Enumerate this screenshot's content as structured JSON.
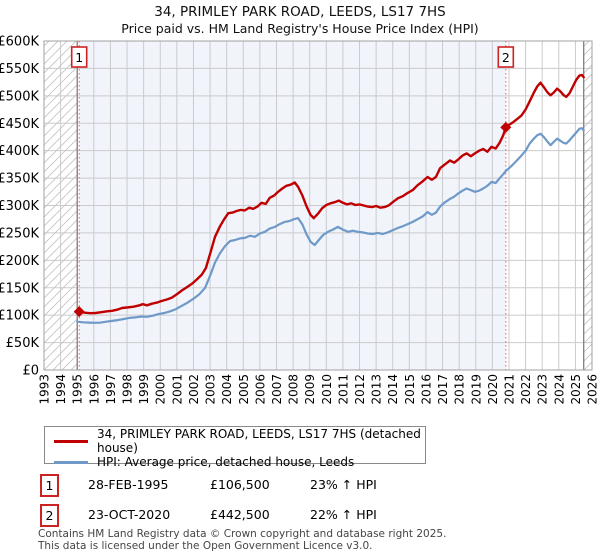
{
  "header": {
    "title": "34, PRIMLEY PARK ROAD, LEEDS, LS17 7HS",
    "subtitle": "Price paid vs. HM Land Registry's House Price Index (HPI)"
  },
  "chart_data": {
    "type": "line",
    "title": "34, PRIMLEY PARK ROAD, LEEDS, LS17 7HS",
    "subtitle": "Price paid vs. HM Land Registry's House Price Index (HPI)",
    "x_axis": {
      "range": [
        1993,
        2026
      ],
      "ticks": [
        1993,
        1994,
        1995,
        1996,
        1997,
        1998,
        1999,
        2000,
        2001,
        2002,
        2003,
        2004,
        2005,
        2006,
        2007,
        2008,
        2009,
        2010,
        2011,
        2012,
        2013,
        2014,
        2015,
        2016,
        2017,
        2018,
        2019,
        2020,
        2021,
        2022,
        2023,
        2024,
        2025,
        2026
      ]
    },
    "y_axis": {
      "range_gbp": [
        0,
        600000
      ],
      "tick_step_gbp": 50000,
      "tick_labels": [
        "£0",
        "£50K",
        "£100K",
        "£150K",
        "£200K",
        "£250K",
        "£300K",
        "£350K",
        "£400K",
        "£450K",
        "£500K",
        "£550K",
        "£600K"
      ]
    },
    "grid": true,
    "colors": {
      "property": "#c00000",
      "hpi": "#6e99c9",
      "sale_line": "#ff5a5a",
      "shade": "#f1f4fb",
      "grid": "#cbcbcb",
      "hatch": "#c4c4c4",
      "frame": "#a0a0a0",
      "boundary": "#808080"
    },
    "data_start_year": 1995.0,
    "data_end_year": 2025.5,
    "shaded_region_years": [
      1995.12,
      2020.81
    ],
    "hatch_regions_years": [
      [
        1993,
        1995.0
      ],
      [
        2025.5,
        2026
      ]
    ],
    "sales": [
      {
        "label": "1",
        "year": 1995.12,
        "price_gbp_k": 106.5
      },
      {
        "label": "2",
        "year": 2020.81,
        "price_gbp_k": 442.5
      }
    ],
    "series": [
      {
        "name": "34, PRIMLEY PARK ROAD, LEEDS, LS17 7HS (detached house)",
        "color": "#c00000",
        "points": [
          [
            1995.12,
            106.5
          ],
          [
            1995.45,
            104.5
          ],
          [
            1995.8,
            103.5
          ],
          [
            1996.1,
            104
          ],
          [
            1996.45,
            105.5
          ],
          [
            1996.8,
            107
          ],
          [
            1997.1,
            108
          ],
          [
            1997.4,
            110
          ],
          [
            1997.7,
            113
          ],
          [
            1998.0,
            114
          ],
          [
            1998.4,
            115.5
          ],
          [
            1998.75,
            118
          ],
          [
            1998.95,
            120
          ],
          [
            1999.2,
            118
          ],
          [
            1999.5,
            121
          ],
          [
            1999.8,
            123
          ],
          [
            2000.1,
            126
          ],
          [
            2000.4,
            128.5
          ],
          [
            2000.7,
            132
          ],
          [
            2001.0,
            138
          ],
          [
            2001.3,
            145
          ],
          [
            2001.6,
            151
          ],
          [
            2001.9,
            157
          ],
          [
            2002.2,
            165
          ],
          [
            2002.5,
            174
          ],
          [
            2002.75,
            186
          ],
          [
            2003.0,
            212
          ],
          [
            2003.3,
            243
          ],
          [
            2003.6,
            262
          ],
          [
            2003.85,
            275
          ],
          [
            2004.1,
            286
          ],
          [
            2004.35,
            287
          ],
          [
            2004.6,
            290
          ],
          [
            2004.85,
            292
          ],
          [
            2005.1,
            291
          ],
          [
            2005.35,
            296
          ],
          [
            2005.6,
            294
          ],
          [
            2005.85,
            298
          ],
          [
            2006.1,
            305
          ],
          [
            2006.35,
            303
          ],
          [
            2006.6,
            314
          ],
          [
            2006.85,
            318
          ],
          [
            2007.1,
            325
          ],
          [
            2007.35,
            331
          ],
          [
            2007.6,
            336
          ],
          [
            2007.85,
            338
          ],
          [
            2008.1,
            342
          ],
          [
            2008.3,
            334
          ],
          [
            2008.55,
            319
          ],
          [
            2008.8,
            299
          ],
          [
            2009.05,
            283
          ],
          [
            2009.25,
            277
          ],
          [
            2009.5,
            285
          ],
          [
            2009.75,
            295
          ],
          [
            2010.0,
            301
          ],
          [
            2010.25,
            304
          ],
          [
            2010.5,
            306
          ],
          [
            2010.75,
            309
          ],
          [
            2011.0,
            305
          ],
          [
            2011.25,
            302
          ],
          [
            2011.5,
            304
          ],
          [
            2011.75,
            301
          ],
          [
            2012.0,
            302
          ],
          [
            2012.25,
            300
          ],
          [
            2012.5,
            298
          ],
          [
            2012.75,
            297
          ],
          [
            2013.0,
            299
          ],
          [
            2013.25,
            296
          ],
          [
            2013.5,
            297
          ],
          [
            2013.75,
            300
          ],
          [
            2014.0,
            306
          ],
          [
            2014.3,
            313
          ],
          [
            2014.6,
            317
          ],
          [
            2014.9,
            323
          ],
          [
            2015.2,
            328
          ],
          [
            2015.5,
            337
          ],
          [
            2015.8,
            344
          ],
          [
            2016.1,
            352
          ],
          [
            2016.35,
            347
          ],
          [
            2016.6,
            352
          ],
          [
            2016.85,
            368
          ],
          [
            2017.1,
            374
          ],
          [
            2017.45,
            382
          ],
          [
            2017.7,
            378
          ],
          [
            2017.95,
            384
          ],
          [
            2018.2,
            391
          ],
          [
            2018.45,
            395
          ],
          [
            2018.7,
            390
          ],
          [
            2018.95,
            395
          ],
          [
            2019.2,
            400
          ],
          [
            2019.45,
            403
          ],
          [
            2019.7,
            398
          ],
          [
            2019.95,
            407
          ],
          [
            2020.2,
            404
          ],
          [
            2020.45,
            415
          ],
          [
            2020.65,
            428
          ],
          [
            2020.81,
            442.5
          ],
          [
            2021.0,
            447
          ],
          [
            2021.25,
            452
          ],
          [
            2021.5,
            458
          ],
          [
            2021.75,
            464
          ],
          [
            2022.0,
            475
          ],
          [
            2022.25,
            490
          ],
          [
            2022.5,
            506
          ],
          [
            2022.7,
            517
          ],
          [
            2022.9,
            524
          ],
          [
            2023.1,
            516
          ],
          [
            2023.3,
            507
          ],
          [
            2023.5,
            501
          ],
          [
            2023.7,
            506
          ],
          [
            2023.9,
            513
          ],
          [
            2024.1,
            508
          ],
          [
            2024.3,
            501
          ],
          [
            2024.45,
            498
          ],
          [
            2024.65,
            505
          ],
          [
            2024.85,
            517
          ],
          [
            2025.05,
            529
          ],
          [
            2025.25,
            537
          ],
          [
            2025.4,
            538
          ],
          [
            2025.5,
            534
          ]
        ]
      },
      {
        "name": "HPI: Average price, detached house, Leeds",
        "color": "#6e99c9",
        "points": [
          [
            1995.0,
            88
          ],
          [
            1995.35,
            87
          ],
          [
            1995.7,
            86.5
          ],
          [
            1996.05,
            86
          ],
          [
            1996.4,
            86.5
          ],
          [
            1996.75,
            88
          ],
          [
            1997.1,
            89.5
          ],
          [
            1997.45,
            91
          ],
          [
            1997.8,
            93
          ],
          [
            1998.15,
            95
          ],
          [
            1998.5,
            96
          ],
          [
            1998.85,
            97.5
          ],
          [
            1999.2,
            97
          ],
          [
            1999.55,
            99
          ],
          [
            1999.9,
            102
          ],
          [
            2000.25,
            104
          ],
          [
            2000.6,
            107
          ],
          [
            2000.95,
            111
          ],
          [
            2001.3,
            117
          ],
          [
            2001.65,
            123
          ],
          [
            2002.0,
            130
          ],
          [
            2002.35,
            138
          ],
          [
            2002.7,
            150
          ],
          [
            2003.0,
            172
          ],
          [
            2003.3,
            196
          ],
          [
            2003.6,
            213
          ],
          [
            2003.9,
            226
          ],
          [
            2004.2,
            235
          ],
          [
            2004.5,
            237
          ],
          [
            2004.8,
            240
          ],
          [
            2005.1,
            241
          ],
          [
            2005.4,
            245
          ],
          [
            2005.7,
            243
          ],
          [
            2006.0,
            249
          ],
          [
            2006.3,
            252
          ],
          [
            2006.6,
            258
          ],
          [
            2006.9,
            261
          ],
          [
            2007.2,
            266
          ],
          [
            2007.5,
            270
          ],
          [
            2007.8,
            272
          ],
          [
            2008.05,
            275
          ],
          [
            2008.3,
            277
          ],
          [
            2008.55,
            266
          ],
          [
            2008.8,
            248
          ],
          [
            2009.05,
            234
          ],
          [
            2009.3,
            228
          ],
          [
            2009.55,
            237
          ],
          [
            2009.8,
            246
          ],
          [
            2010.1,
            252
          ],
          [
            2010.4,
            256
          ],
          [
            2010.7,
            261
          ],
          [
            2011.0,
            256
          ],
          [
            2011.3,
            252
          ],
          [
            2011.6,
            254
          ],
          [
            2011.9,
            252
          ],
          [
            2012.2,
            251
          ],
          [
            2012.5,
            249
          ],
          [
            2012.8,
            248
          ],
          [
            2013.1,
            250
          ],
          [
            2013.4,
            248
          ],
          [
            2013.7,
            251
          ],
          [
            2014.0,
            255
          ],
          [
            2014.3,
            259
          ],
          [
            2014.6,
            262
          ],
          [
            2014.9,
            266
          ],
          [
            2015.2,
            270
          ],
          [
            2015.5,
            275
          ],
          [
            2015.8,
            280
          ],
          [
            2016.1,
            288
          ],
          [
            2016.35,
            283
          ],
          [
            2016.6,
            287
          ],
          [
            2016.85,
            298
          ],
          [
            2017.1,
            305
          ],
          [
            2017.45,
            312
          ],
          [
            2017.7,
            316
          ],
          [
            2017.95,
            322
          ],
          [
            2018.2,
            327
          ],
          [
            2018.45,
            331
          ],
          [
            2018.7,
            328
          ],
          [
            2018.95,
            325
          ],
          [
            2019.2,
            327
          ],
          [
            2019.45,
            331
          ],
          [
            2019.7,
            336
          ],
          [
            2019.95,
            343
          ],
          [
            2020.2,
            341
          ],
          [
            2020.45,
            350
          ],
          [
            2020.65,
            357
          ],
          [
            2020.81,
            363
          ],
          [
            2021.0,
            368
          ],
          [
            2021.25,
            375
          ],
          [
            2021.5,
            383
          ],
          [
            2021.75,
            391
          ],
          [
            2022.0,
            400
          ],
          [
            2022.25,
            413
          ],
          [
            2022.5,
            422
          ],
          [
            2022.7,
            428
          ],
          [
            2022.9,
            431
          ],
          [
            2023.1,
            425
          ],
          [
            2023.3,
            417
          ],
          [
            2023.5,
            410
          ],
          [
            2023.7,
            416
          ],
          [
            2023.9,
            422
          ],
          [
            2024.1,
            418
          ],
          [
            2024.3,
            414
          ],
          [
            2024.45,
            413
          ],
          [
            2024.65,
            419
          ],
          [
            2024.85,
            426
          ],
          [
            2025.05,
            433
          ],
          [
            2025.25,
            440
          ],
          [
            2025.4,
            441
          ],
          [
            2025.5,
            437
          ]
        ]
      }
    ]
  },
  "legend": {
    "items": [
      {
        "label": "34, PRIMLEY PARK ROAD, LEEDS, LS17 7HS (detached house)",
        "color": "#c00000"
      },
      {
        "label": "HPI: Average price, detached house, Leeds",
        "color": "#6e99c9"
      }
    ]
  },
  "annotations": [
    {
      "num": "1",
      "date": "28-FEB-1995",
      "price": "£106,500",
      "hpi": "23% ↑ HPI"
    },
    {
      "num": "2",
      "date": "23-OCT-2020",
      "price": "£442,500",
      "hpi": "22% ↑ HPI"
    }
  ],
  "footer": {
    "line1": "Contains HM Land Registry data © Crown copyright and database right 2025.",
    "line2": "This data is licensed under the Open Government Licence v3.0."
  }
}
